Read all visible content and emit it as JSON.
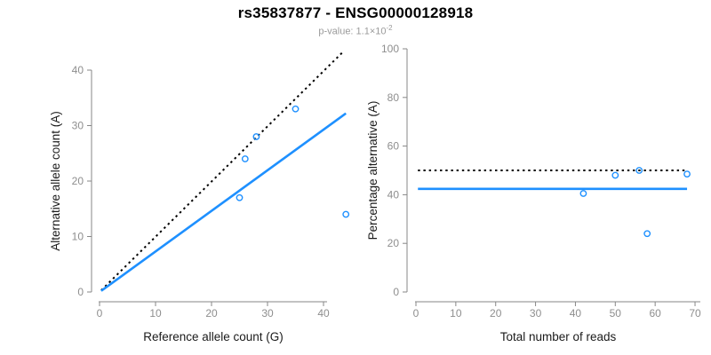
{
  "page": {
    "background": "#ffffff"
  },
  "header": {
    "title": "rs35837877 - ENSG00000128918",
    "subtitle_prefix": "p-value: 1.1×10",
    "subtitle_exponent": "-2"
  },
  "colors": {
    "accent_blue": "#1E90FF",
    "dotted_line": "#000000",
    "axis_line": "#878787",
    "tick_label": "#8e8e8e",
    "axis_title": "#1a1a1a",
    "subtitle_gray": "#9a9a9a"
  },
  "chart_data": [
    {
      "name": "allele-counts",
      "type": "scatter",
      "title": "rs35837877 - ENSG00000128918",
      "subtitle": "p-value: 1.1×10^-2",
      "xlabel": "Reference allele count (G)",
      "ylabel": "Alternative allele count (A)",
      "xlim": [
        0,
        44
      ],
      "ylim": [
        0,
        44
      ],
      "xticks": [
        0,
        10,
        20,
        30,
        40
      ],
      "yticks": [
        0,
        10,
        20,
        30,
        40
      ],
      "grid": false,
      "legend": "none",
      "point_color": "#1E90FF",
      "points": [
        [
          25,
          17
        ],
        [
          26,
          24
        ],
        [
          28,
          28
        ],
        [
          35,
          33
        ],
        [
          44,
          14
        ]
      ],
      "lines": [
        {
          "name": "identity-line",
          "style": "dotted",
          "color": "#000000",
          "width": 2,
          "x1": 0.3,
          "y1": 0.3,
          "x2": 43.7,
          "y2": 43.5
        },
        {
          "name": "regression-line",
          "style": "solid",
          "color": "#1E90FF",
          "width": 2.6,
          "x1": 0.3,
          "y1": 0.2,
          "x2": 44,
          "y2": 32.2
        }
      ]
    },
    {
      "name": "percentage-alternative",
      "type": "scatter",
      "xlabel": "Total number of reads",
      "ylabel": "Percentage alternative (A)",
      "xlim": [
        0,
        71
      ],
      "ylim": [
        0,
        100
      ],
      "xticks": [
        0,
        10,
        20,
        30,
        40,
        50,
        60,
        70
      ],
      "yticks": [
        0,
        20,
        40,
        60,
        80,
        100
      ],
      "grid": false,
      "legend": "none",
      "point_color": "#1E90FF",
      "points": [
        [
          42,
          40.5
        ],
        [
          50,
          48
        ],
        [
          56,
          50
        ],
        [
          58,
          24
        ],
        [
          68,
          48.5
        ]
      ],
      "lines": [
        {
          "name": "expected-50-percent-line",
          "style": "dotted",
          "color": "#000000",
          "width": 2,
          "x1": 0.5,
          "y1": 50,
          "x2": 67.5,
          "y2": 50
        },
        {
          "name": "mean-percentage-line",
          "style": "solid",
          "color": "#1E90FF",
          "width": 2.6,
          "x1": 0.5,
          "y1": 42.4,
          "x2": 68,
          "y2": 42.4
        }
      ]
    }
  ]
}
